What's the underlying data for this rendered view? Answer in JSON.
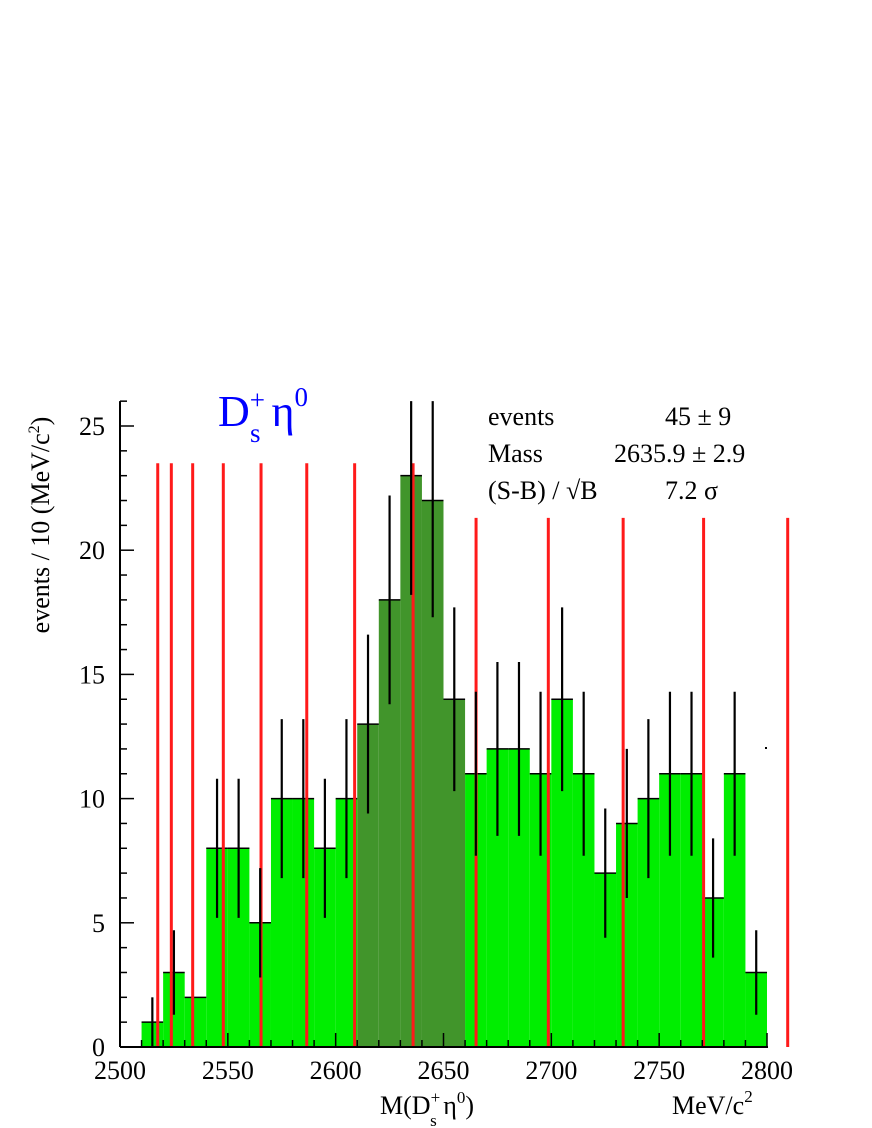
{
  "chart_data": {
    "type": "bar",
    "bin_width": 10,
    "x_range": [
      2500,
      2800
    ],
    "y_range": [
      0,
      26
    ],
    "bins": [
      {
        "x": 2515,
        "value": 1,
        "error": 1.0
      },
      {
        "x": 2525,
        "value": 3,
        "error": 1.7
      },
      {
        "x": 2535,
        "value": 2,
        "error": 0
      },
      {
        "x": 2545,
        "value": 8,
        "error": 2.8
      },
      {
        "x": 2555,
        "value": 8,
        "error": 2.8
      },
      {
        "x": 2565,
        "value": 5,
        "error": 2.2
      },
      {
        "x": 2575,
        "value": 10,
        "error": 3.2
      },
      {
        "x": 2585,
        "value": 10,
        "error": 3.2
      },
      {
        "x": 2595,
        "value": 8,
        "error": 2.8
      },
      {
        "x": 2605,
        "value": 10,
        "error": 3.2
      },
      {
        "x": 2615,
        "value": 13,
        "error": 3.6
      },
      {
        "x": 2625,
        "value": 18,
        "error": 4.2
      },
      {
        "x": 2635,
        "value": 23,
        "error": 4.8
      },
      {
        "x": 2645,
        "value": 22,
        "error": 4.7
      },
      {
        "x": 2655,
        "value": 14,
        "error": 3.7
      },
      {
        "x": 2665,
        "value": 11,
        "error": 3.3
      },
      {
        "x": 2675,
        "value": 12,
        "error": 3.5
      },
      {
        "x": 2685,
        "value": 12,
        "error": 3.5
      },
      {
        "x": 2695,
        "value": 11,
        "error": 3.3
      },
      {
        "x": 2705,
        "value": 14,
        "error": 3.7
      },
      {
        "x": 2715,
        "value": 11,
        "error": 3.3
      },
      {
        "x": 2725,
        "value": 7,
        "error": 2.6
      },
      {
        "x": 2735,
        "value": 9,
        "error": 3.0
      },
      {
        "x": 2745,
        "value": 10,
        "error": 3.2
      },
      {
        "x": 2755,
        "value": 11,
        "error": 3.3
      },
      {
        "x": 2765,
        "value": 11,
        "error": 3.3
      },
      {
        "x": 2775,
        "value": 6,
        "error": 2.4
      },
      {
        "x": 2785,
        "value": 11,
        "error": 3.3
      },
      {
        "x": 2795,
        "value": 3,
        "error": 1.7
      }
    ],
    "signal_region": [
      2610,
      2660
    ],
    "vertical_lines_x": [
      2517.5,
      2523.8,
      2533.7,
      2547.9,
      2565.4,
      2586.6,
      2608.8,
      2635.9,
      2665.1,
      2698.6,
      2733.3,
      2770.6,
      2809.6
    ],
    "x_ticks": [
      2500,
      2550,
      2600,
      2650,
      2700,
      2750,
      2800
    ],
    "y_ticks": [
      0,
      5,
      10,
      15,
      20,
      25
    ],
    "ylabel": "events / 10 (MeV/c",
    "ylabel_sup": "2",
    "ylabel_end": ")",
    "xlabel": {
      "pre": "M(D",
      "sup": "+",
      "sub": "s",
      "post": " η",
      "sup2": "0",
      "close": ")"
    },
    "xunit": {
      "main": "MeV/c",
      "sup": "2"
    },
    "channel_label": {
      "main": "D",
      "sup": "+",
      "sub": "s",
      "eta": " η",
      "sup2": "0"
    },
    "stats": {
      "events_label": "events",
      "events_value": "45 ± 9",
      "mass_label": "Mass",
      "mass_value": "2635.9 ± 2.9",
      "significance_label": "(S-B) / √B",
      "significance_value": "7.2 σ"
    },
    "colors": {
      "histogram": "#00ee00",
      "signal": "#41952b",
      "lines": "#ff1a1a",
      "errors": "#000000",
      "channel_label": "#0000ff"
    }
  }
}
